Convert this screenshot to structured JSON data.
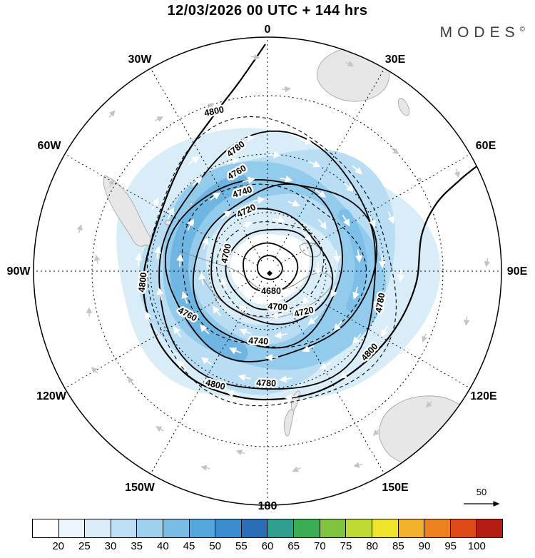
{
  "header": {
    "title": "12/03/2026  00 UTC  + 144 hrs",
    "logo": "MODES",
    "logo_mark": "©"
  },
  "map": {
    "longitude_labels": [
      "0",
      "30E",
      "60E",
      "90E",
      "120E",
      "150E",
      "180",
      "150W",
      "120W",
      "90W",
      "60W",
      "30W"
    ],
    "contour_labels": [
      "4800",
      "4780",
      "4760",
      "4740",
      "4720",
      "4700",
      "4680",
      "4700",
      "4720",
      "4740",
      "4760",
      "4780",
      "4780",
      "4800",
      "4800",
      "4800"
    ],
    "reference_vector_label": "50"
  },
  "colorbar": {
    "ticks": [
      "20",
      "25",
      "30",
      "35",
      "40",
      "45",
      "50",
      "55",
      "60",
      "65",
      "70",
      "75",
      "80",
      "85",
      "90",
      "95",
      "100"
    ],
    "colors": [
      "#ffffff",
      "#edf6fc",
      "#d9ecf8",
      "#bfe0f4",
      "#9dd1ee",
      "#79bde5",
      "#55a6da",
      "#3a8ecd",
      "#2a6eb8",
      "#2f9f90",
      "#3cae54",
      "#7ec43e",
      "#bdda33",
      "#f1e42c",
      "#f3b02a",
      "#ec8120",
      "#df4a1b",
      "#b51c12"
    ]
  },
  "chart_data": {
    "type": "heatmap",
    "title": "12/03/2026 00 UTC + 144 hrs",
    "source_logo": "MODES©",
    "projection": "Southern Hemisphere polar stereographic map",
    "contour_field": "geopotential height (gpm)",
    "contour_levels": [
      4680,
      4700,
      4720,
      4740,
      4760,
      4780,
      4800
    ],
    "contour_interval": 20,
    "contour_minimum_region": 4680,
    "shaded_field": "wind speed",
    "colorbar_ticks": [
      20,
      25,
      30,
      35,
      40,
      45,
      50,
      55,
      60,
      65,
      70,
      75,
      80,
      85,
      90,
      95,
      100
    ],
    "shading_observed_range": [
      20,
      45
    ],
    "reference_vector": 50,
    "longitude_labels": [
      "0",
      "30E",
      "60E",
      "90E",
      "120E",
      "150E",
      "180",
      "150W",
      "120W",
      "90W",
      "60W",
      "30W"
    ],
    "legend_position": "bottom",
    "grid": "dashed latitude circles and 30-degree meridians",
    "notes": "Circumpolar cyclonic vortex centered near the South Pole; closed height contours 4680-4800 with strong wind-speed ring shaded blue"
  }
}
